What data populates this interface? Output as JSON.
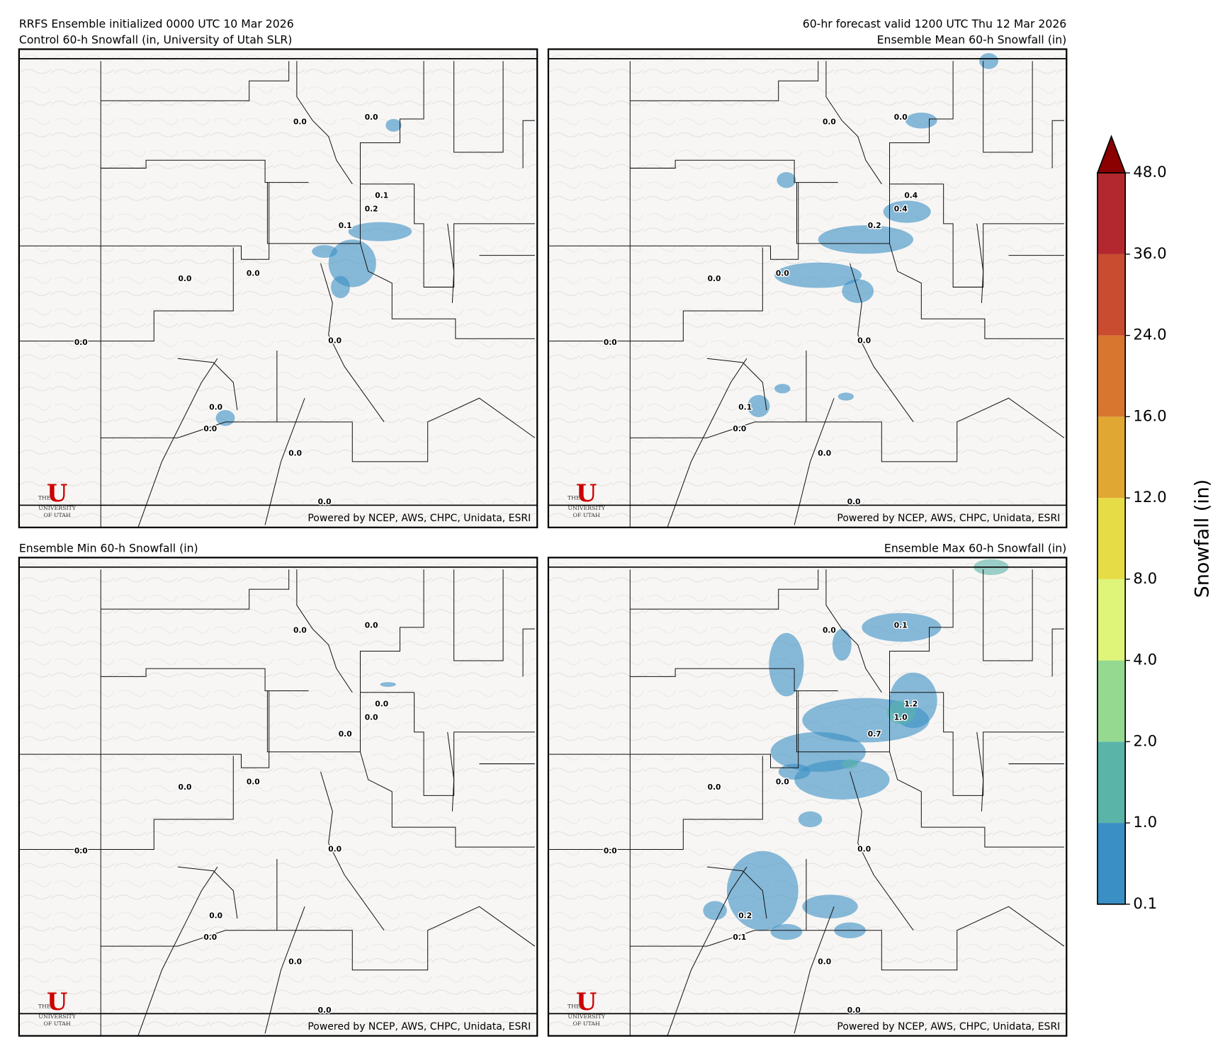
{
  "header": {
    "init": "RRFS Ensemble initialized 0000 UTC 10 Mar 2026",
    "valid": "60-hr forecast valid 1200 UTC Thu 12 Mar 2026"
  },
  "credit": "Powered by NCEP, AWS, CHPC, Unidata, ESRI",
  "logo": {
    "mark": "U",
    "line1": "THE",
    "line2": "UNIVERSITY",
    "line3": "OF UTAH"
  },
  "panels": [
    {
      "title": "Control 60-h Snowfall (in, University of Utah SLR)",
      "points": [
        "0.0",
        "0.0",
        "0.1",
        "0.2",
        "0.1",
        "0.0",
        "0.0",
        "0.0",
        "0.0",
        "0.0",
        "0.0",
        "0.0",
        "0.0"
      ]
    },
    {
      "title": "Ensemble Mean 60-h Snowfall (in)",
      "points": [
        "0.0",
        "0.0",
        "0.4",
        "0.4",
        "0.2",
        "0.0",
        "0.0",
        "0.0",
        "0.0",
        "0.1",
        "0.0",
        "0.0",
        "0.0"
      ]
    },
    {
      "title": "Ensemble Min 60-h Snowfall (in)",
      "points": [
        "0.0",
        "0.0",
        "0.0",
        "0.0",
        "0.0",
        "0.0",
        "0.0",
        "0.0",
        "0.0",
        "0.0",
        "0.0",
        "0.0",
        "0.0"
      ]
    },
    {
      "title": "Ensemble Max 60-h Snowfall (in)",
      "points": [
        "0.0",
        "0.1",
        "1.2",
        "1.0",
        "0.7",
        "0.0",
        "0.0",
        "0.0",
        "0.0",
        "0.2",
        "0.1",
        "0.0",
        "0.0"
      ]
    }
  ],
  "colorbar": {
    "label": "Snowfall (in)",
    "ticks": [
      "0.1",
      "1.0",
      "2.0",
      "4.0",
      "8.0",
      "12.0",
      "16.0",
      "24.0",
      "36.0",
      "48.0"
    ],
    "colors": [
      "#3a8fc4",
      "#5bb4a8",
      "#94d98f",
      "#dff57a",
      "#e6dc45",
      "#e0a733",
      "#d8762f",
      "#c94b30",
      "#b2282e"
    ],
    "extend_color": "#8b0000"
  }
}
